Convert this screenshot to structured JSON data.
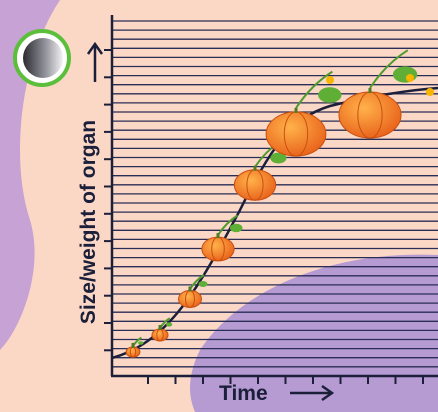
{
  "y_axis_label": "Size/weight of organ",
  "x_axis_label": "Time"
}
